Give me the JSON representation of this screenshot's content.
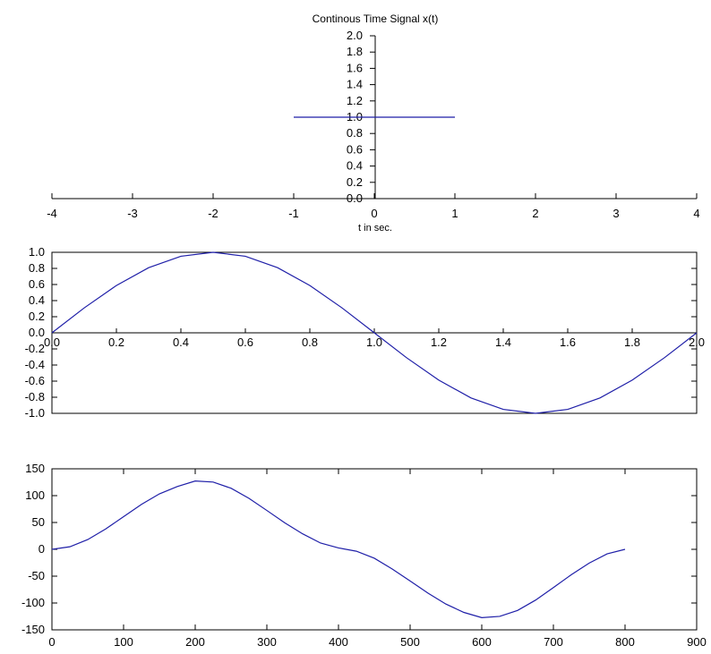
{
  "colors": {
    "line": "#1f1fa8",
    "axis": "#000000",
    "background": "#ffffff"
  },
  "chart_data": [
    {
      "type": "line",
      "title": "Continous Time Signal x(t)",
      "xlabel": "t in sec.",
      "ylabel": "",
      "xlim": [
        -4,
        4
      ],
      "ylim": [
        0,
        2.0
      ],
      "x_ticks": [
        "-4",
        "-3",
        "-2",
        "-1",
        "0",
        "1",
        "2",
        "3",
        "4"
      ],
      "y_ticks": [
        "0.0",
        "0.2",
        "0.4",
        "0.6",
        "0.8",
        "1.0",
        "1.2",
        "1.4",
        "1.6",
        "1.8",
        "2.0"
      ],
      "axes_style": "centered-origin",
      "grid": false,
      "series": [
        {
          "x": [
            -1,
            1
          ],
          "y": [
            1.0,
            1.0
          ]
        }
      ]
    },
    {
      "type": "line",
      "title": "",
      "xlabel": "",
      "ylabel": "",
      "xlim": [
        0,
        2.0
      ],
      "ylim": [
        -1.0,
        1.0
      ],
      "x_ticks": [
        "0.0",
        "0.2",
        "0.4",
        "0.6",
        "0.8",
        "1.0",
        "1.2",
        "1.4",
        "1.6",
        "1.8",
        "2.0"
      ],
      "y_ticks": [
        "-1.0",
        "-0.8",
        "-0.6",
        "-0.4",
        "-0.2",
        "0.0",
        "0.2",
        "0.4",
        "0.6",
        "0.8",
        "1.0"
      ],
      "axes_style": "boxed-with-zero-line",
      "grid": false,
      "series": [
        {
          "x": [
            0,
            0.1,
            0.2,
            0.3,
            0.4,
            0.5,
            0.6,
            0.7,
            0.8,
            0.9,
            1.0,
            1.1,
            1.2,
            1.3,
            1.4,
            1.5,
            1.6,
            1.7,
            1.8,
            1.9,
            2.0
          ],
          "y": [
            0,
            0.309,
            0.588,
            0.809,
            0.951,
            1.0,
            0.951,
            0.809,
            0.588,
            0.309,
            0,
            -0.309,
            -0.588,
            -0.809,
            -0.951,
            -1.0,
            -0.951,
            -0.809,
            -0.588,
            -0.309,
            0
          ]
        }
      ]
    },
    {
      "type": "line",
      "title": "",
      "xlabel": "",
      "ylabel": "",
      "xlim": [
        0,
        900
      ],
      "ylim": [
        -150,
        150
      ],
      "x_ticks": [
        "0",
        "100",
        "200",
        "300",
        "400",
        "500",
        "600",
        "700",
        "800",
        "900"
      ],
      "y_ticks": [
        "-150",
        "-100",
        "-50",
        "0",
        "50",
        "100",
        "150"
      ],
      "axes_style": "boxed",
      "grid": false,
      "series": [
        {
          "x": [
            0,
            25,
            50,
            75,
            100,
            125,
            150,
            175,
            200,
            225,
            250,
            275,
            300,
            325,
            350,
            375,
            400,
            425,
            450,
            475,
            500,
            525,
            550,
            575,
            600,
            625,
            650,
            675,
            700,
            725,
            750,
            775,
            800
          ],
          "y": [
            0,
            4.8,
            18.2,
            37.9,
            60.8,
            83.7,
            103.3,
            117.0,
            127.3,
            125.3,
            113.8,
            95.0,
            72.4,
            49.3,
            28.8,
            11.7,
            2.6,
            -3.5,
            -16.6,
            -36.6,
            -58.9,
            -81.7,
            -102.0,
            -117.5,
            -127.3,
            -124.9,
            -113.8,
            -94.7,
            -71.2,
            -47.3,
            -25.6,
            -8.4,
            0
          ]
        }
      ]
    }
  ]
}
